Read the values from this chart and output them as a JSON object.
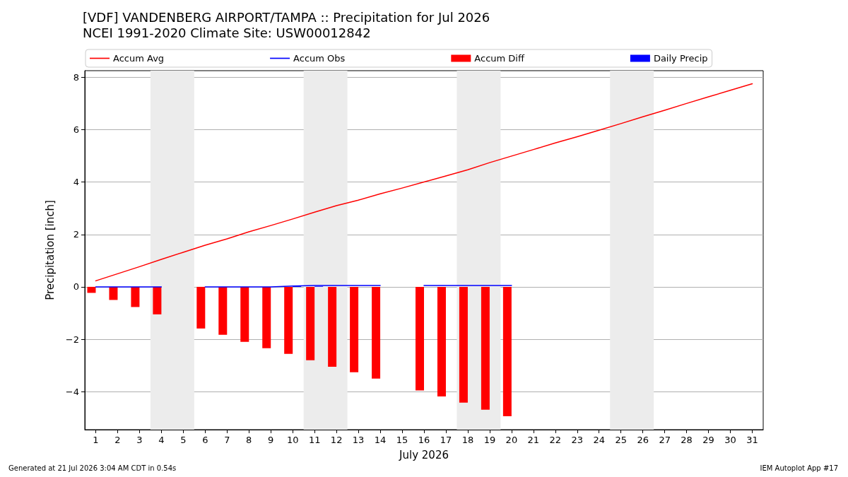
{
  "chart_data": {
    "type": "bar",
    "title": "[VDF] VANDENBERG AIRPORT/TAMPA :: Precipitation for Jul 2026",
    "subtitle": "NCEI 1991-2020 Climate Site: USW00012842",
    "xlabel": "July 2026",
    "ylabel": "Precipitation [inch]",
    "x": [
      1,
      2,
      3,
      4,
      5,
      6,
      7,
      8,
      9,
      10,
      11,
      12,
      13,
      14,
      15,
      16,
      17,
      18,
      19,
      20,
      21,
      22,
      23,
      24,
      25,
      26,
      27,
      28,
      29,
      30,
      31
    ],
    "series": [
      {
        "name": "Accum Avg",
        "type": "line",
        "color": "#ff0000",
        "values": [
          0.23,
          0.5,
          0.77,
          1.05,
          1.32,
          1.59,
          1.83,
          2.1,
          2.34,
          2.59,
          2.85,
          3.1,
          3.31,
          3.55,
          3.77,
          4.0,
          4.23,
          4.47,
          4.74,
          4.99,
          5.24,
          5.49,
          5.73,
          5.98,
          6.23,
          6.49,
          6.74,
          7.0,
          7.25,
          7.5,
          7.75
        ]
      },
      {
        "name": "Accum Obs",
        "type": "line",
        "color": "#0000ff",
        "values": [
          0,
          0,
          0,
          0,
          null,
          0,
          0,
          0,
          0,
          0.03,
          0.05,
          0.05,
          0.05,
          0.05,
          null,
          0.05,
          0.05,
          0.05,
          0.05,
          0.05,
          null,
          null,
          null,
          null,
          null,
          null,
          null,
          null,
          null,
          null,
          null
        ]
      },
      {
        "name": "Accum Diff",
        "type": "bar",
        "color": "#ff0000",
        "values": [
          -0.23,
          -0.5,
          -0.77,
          -1.05,
          null,
          -1.59,
          -1.83,
          -2.1,
          -2.34,
          -2.56,
          -2.8,
          -3.05,
          -3.26,
          -3.5,
          null,
          -3.95,
          -4.18,
          -4.42,
          -4.69,
          -4.94,
          null,
          null,
          null,
          null,
          null,
          null,
          null,
          null,
          null,
          null,
          null
        ]
      },
      {
        "name": "Daily Precip",
        "type": "bar",
        "color": "#0000ff",
        "values": [
          0,
          0,
          0,
          0,
          null,
          0,
          0,
          0,
          0,
          0.03,
          0.02,
          0,
          0,
          0,
          null,
          0,
          0,
          0,
          0,
          0,
          null,
          null,
          null,
          null,
          null,
          null,
          null,
          null,
          null,
          null,
          null
        ]
      }
    ],
    "xlim": [
      0.5,
      31.5
    ],
    "xticks": [
      1,
      2,
      3,
      4,
      5,
      6,
      7,
      8,
      9,
      10,
      11,
      12,
      13,
      14,
      15,
      16,
      17,
      18,
      19,
      20,
      21,
      22,
      23,
      24,
      25,
      26,
      27,
      28,
      29,
      30,
      31
    ],
    "ylim": [
      -5.45,
      8.25
    ],
    "yticks": [
      {
        "value": -4,
        "label": "−4"
      },
      {
        "value": -2,
        "label": "−2"
      },
      0,
      2,
      4,
      6,
      8
    ],
    "bands": [
      {
        "axis": "x",
        "from": 3.5,
        "to": 5.5,
        "color": "#ececec"
      },
      {
        "axis": "x",
        "from": 10.5,
        "to": 12.5,
        "color": "#ececec"
      },
      {
        "axis": "x",
        "from": 17.5,
        "to": 19.5,
        "color": "#ececec"
      },
      {
        "axis": "x",
        "from": 24.5,
        "to": 26.5,
        "color": "#ececec"
      }
    ],
    "grid": "y",
    "legend": "top",
    "annotations": [
      "Generated at 21 Jul 2026 3:04 AM CDT in 0.54s",
      "IEM Autoplot App #17"
    ]
  }
}
